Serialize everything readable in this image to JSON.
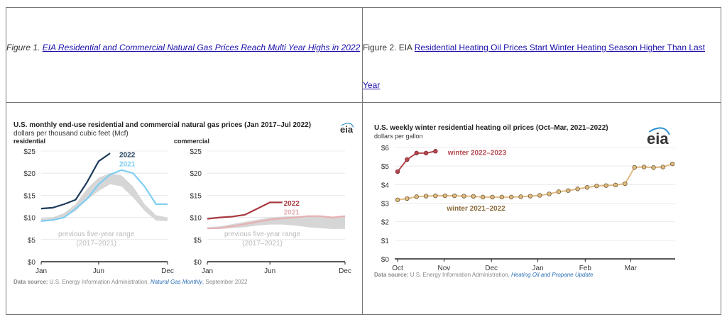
{
  "captions": {
    "fig1_prefix": "Figure 1. ",
    "fig1_link": "EIA Residential and Commercial Natural Gas Prices Reach Multi Year Highs in 2022",
    "fig2_prefix": "Figure 2. EIA ",
    "fig2_link": "Residential Heating Oil Prices Start Winter Heating Season Higher Than Last Year"
  },
  "logo_text": "eia",
  "chart_data": [
    {
      "type": "line",
      "title": "U.S. monthly end-use residential and commercial natural gas prices (Jan 2017–Jul 2022)",
      "subtitle": "dollars per thousand cubic feet (Mcf)",
      "ylim": [
        0,
        25
      ],
      "yticks": [
        0,
        5,
        10,
        15,
        20,
        25
      ],
      "ytick_labels": [
        "$0",
        "$5",
        "$10",
        "$15",
        "$20",
        "$25"
      ],
      "xticks": [
        1,
        6,
        12
      ],
      "xtick_labels": [
        "Jan",
        "Jun",
        "Dec"
      ],
      "range_label": [
        "previous five-year range",
        "(2017–2021)"
      ],
      "source_prefix": "Data source:",
      "source_text": " U.S. Energy Information Administration, ",
      "source_link": "Natural Gas Monthly",
      "source_suffix": ", September 2022",
      "colors": {
        "y2022": "#1b3a5a",
        "y2021": "#7fcef2",
        "range": "#d6d6d6",
        "c2022": "#a8393f",
        "c2021": "#e7b0b2"
      },
      "panels": [
        {
          "name": "residential",
          "months": [
            1,
            2,
            3,
            4,
            5,
            6,
            7,
            8,
            9,
            10,
            11,
            12
          ],
          "range_low": [
            9.0,
            9.3,
            10.0,
            11.5,
            14.0,
            16.0,
            17.5,
            17.0,
            14.5,
            11.5,
            9.3,
            9.2
          ],
          "range_high": [
            9.8,
            10.0,
            11.0,
            13.0,
            16.5,
            19.0,
            20.0,
            19.5,
            17.0,
            13.0,
            10.5,
            10.0
          ],
          "series": [
            {
              "name": "2022",
              "months": [
                1,
                2,
                3,
                4,
                5,
                6,
                7
              ],
              "values": [
                12.0,
                12.2,
                13.0,
                14.0,
                18.0,
                22.7,
                24.5
              ]
            },
            {
              "name": "2021",
              "months": [
                1,
                2,
                3,
                4,
                5,
                6,
                7,
                8,
                9,
                10,
                11,
                12
              ],
              "values": [
                9.2,
                9.4,
                10.0,
                12.0,
                14.2,
                17.5,
                19.7,
                20.7,
                20.0,
                17.0,
                13.0,
                13.0
              ]
            }
          ]
        },
        {
          "name": "commercial",
          "months": [
            1,
            2,
            3,
            4,
            5,
            6,
            7,
            8,
            9,
            10,
            11,
            12
          ],
          "range_low": [
            7.4,
            7.4,
            7.6,
            7.8,
            8.2,
            8.4,
            8.4,
            8.2,
            7.8,
            7.6,
            7.4,
            7.4
          ],
          "range_high": [
            7.8,
            8.0,
            8.5,
            9.0,
            9.5,
            10.0,
            10.2,
            10.3,
            10.3,
            10.1,
            10.0,
            10.2
          ],
          "series": [
            {
              "name": "2022",
              "months": [
                1,
                2,
                3,
                4,
                5,
                6,
                7
              ],
              "values": [
                9.7,
                10.0,
                10.2,
                10.6,
                12.0,
                13.4,
                13.4
              ]
            },
            {
              "name": "2021",
              "months": [
                1,
                2,
                3,
                4,
                5,
                6,
                7,
                8,
                9,
                10,
                11,
                12
              ],
              "values": [
                7.5,
                7.6,
                8.0,
                8.5,
                9.0,
                9.5,
                9.8,
                10.0,
                10.3,
                10.3,
                10.0,
                10.3
              ]
            }
          ]
        }
      ]
    },
    {
      "type": "line",
      "title": "U.S. weekly winter residential heating oil prices (Oct–Mar, 2021–2022)",
      "subtitle": "dollars per gallon",
      "ylim": [
        0,
        6
      ],
      "yticks": [
        0,
        1,
        2,
        3,
        4,
        5,
        6
      ],
      "ytick_labels": [
        "$0",
        "$1",
        "$2",
        "$3",
        "$4",
        "$5",
        "$6"
      ],
      "xtick_labels": [
        "Oct",
        "Nov",
        "Dec",
        "Jan",
        "Feb",
        "Mar"
      ],
      "source_prefix": "Data source:",
      "source_text": " U.S. Energy Information Administration, ",
      "source_link": "Heating Oil and Propane Update",
      "colors": {
        "w2022": "#b5474e",
        "w2021": "#e2bb80",
        "marker_edge": "#6a5a3a"
      },
      "series": [
        {
          "name": "winter 2022–2023",
          "week_index": [
            0,
            1,
            2,
            3,
            4
          ],
          "values": [
            4.7,
            5.35,
            5.7,
            5.7,
            5.8
          ]
        },
        {
          "name": "winter 2021–2022",
          "week_index": [
            0,
            1,
            2,
            3,
            4,
            5,
            6,
            7,
            8,
            9,
            10,
            11,
            12,
            13,
            14,
            15,
            16,
            17,
            18,
            19,
            20,
            21,
            22,
            23,
            24,
            25,
            26,
            27,
            28,
            29
          ],
          "values": [
            3.18,
            3.25,
            3.35,
            3.38,
            3.4,
            3.4,
            3.4,
            3.38,
            3.37,
            3.33,
            3.33,
            3.33,
            3.33,
            3.35,
            3.38,
            3.42,
            3.5,
            3.62,
            3.68,
            3.77,
            3.85,
            3.93,
            3.95,
            3.98,
            4.05,
            4.93,
            4.95,
            4.92,
            4.95,
            5.12
          ]
        }
      ]
    }
  ]
}
